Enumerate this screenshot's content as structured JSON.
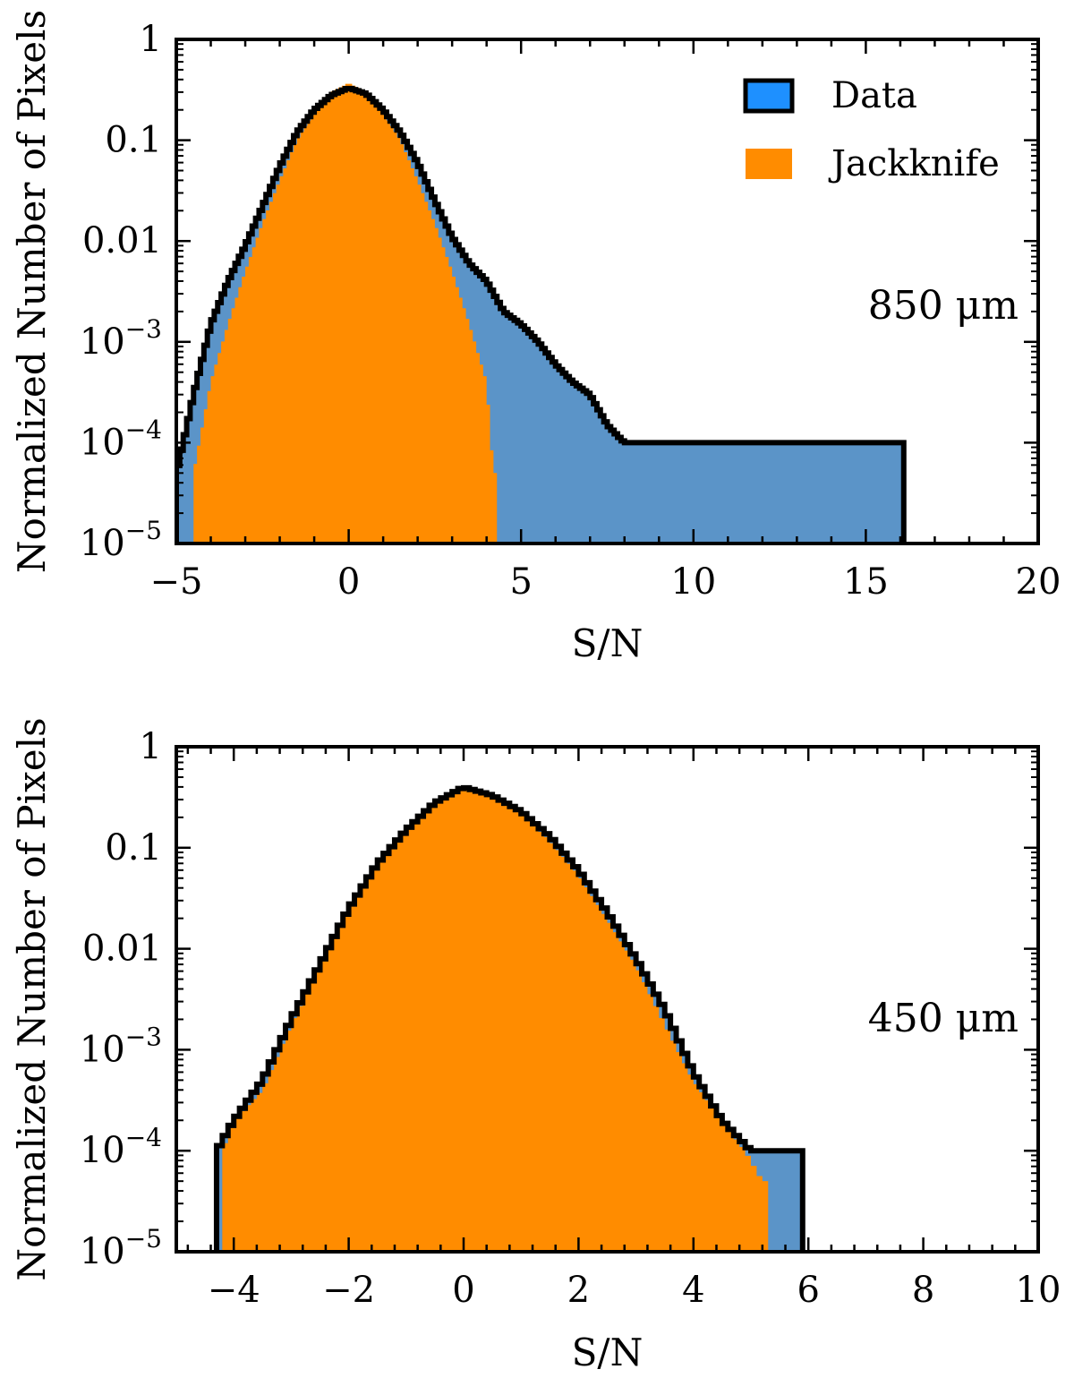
{
  "chart_data": [
    {
      "type": "histogram",
      "xlabel": "S/N",
      "ylabel": "Normalized Number of Pixels",
      "annotation": "850 μm",
      "xlim": [
        -5,
        20
      ],
      "ylim": [
        1e-05,
        1
      ],
      "yscale": "log",
      "x_ticks": [
        -5,
        0,
        5,
        10,
        15,
        20
      ],
      "x_tick_labels": [
        "−5",
        "0",
        "5",
        "10",
        "15",
        "20"
      ],
      "y_ticks": [
        1e-05,
        0.0001,
        0.001,
        0.01,
        0.1,
        1
      ],
      "y_tick_labels": [
        {
          "base": "10",
          "exp": "−5"
        },
        {
          "base": "10",
          "exp": "−4"
        },
        {
          "base": "10",
          "exp": "−3"
        },
        {
          "base": "",
          "text": "0.01"
        },
        {
          "base": "",
          "text": "0.1"
        },
        {
          "base": "",
          "text": "1"
        }
      ],
      "legend": {
        "placement": "top-right",
        "entries": [
          {
            "label": "Data",
            "color": "#1e90ff",
            "edge": "#000000"
          },
          {
            "label": "Jackknife",
            "color": "#ff8c00"
          }
        ]
      },
      "colors": {
        "data_fill": "#5b94c8",
        "jackknife_fill": "#ff8c00",
        "outline": "#000000"
      },
      "series": [
        {
          "name": "Data",
          "bin_width": 0.1,
          "points": [
            [
              -5.0,
              5e-05
            ],
            [
              -4.8,
              0.0001
            ],
            [
              -4.5,
              0.0003
            ],
            [
              -4.0,
              0.0015
            ],
            [
              -3.5,
              0.004
            ],
            [
              -3.0,
              0.009
            ],
            [
              -2.5,
              0.022
            ],
            [
              -2.0,
              0.055
            ],
            [
              -1.5,
              0.12
            ],
            [
              -1.0,
              0.2
            ],
            [
              -0.5,
              0.28
            ],
            [
              0.0,
              0.33
            ],
            [
              0.5,
              0.29
            ],
            [
              1.0,
              0.2
            ],
            [
              1.5,
              0.12
            ],
            [
              2.0,
              0.06
            ],
            [
              2.5,
              0.025
            ],
            [
              3.0,
              0.011
            ],
            [
              3.5,
              0.006
            ],
            [
              4.0,
              0.004
            ],
            [
              4.5,
              0.002
            ],
            [
              5.0,
              0.0015
            ],
            [
              5.5,
              0.001
            ],
            [
              6.0,
              0.0006
            ],
            [
              6.5,
              0.0004
            ],
            [
              7.0,
              0.0003
            ],
            [
              7.5,
              0.00015
            ],
            [
              8.0,
              0.0001
            ],
            [
              9.0,
              0.0001
            ],
            [
              10.0,
              0.0001
            ],
            [
              11.0,
              0.0001
            ],
            [
              12.0,
              0.0001
            ],
            [
              13.0,
              0.0001
            ],
            [
              14.0,
              0.0001
            ],
            [
              15.0,
              0.0001
            ],
            [
              16.0,
              0.0001
            ]
          ]
        },
        {
          "name": "Jackknife",
          "bin_width": 0.1,
          "points": [
            [
              -4.5,
              5e-05
            ],
            [
              -4.0,
              0.0004
            ],
            [
              -3.5,
              0.0015
            ],
            [
              -3.0,
              0.005
            ],
            [
              -2.5,
              0.015
            ],
            [
              -2.0,
              0.04
            ],
            [
              -1.5,
              0.1
            ],
            [
              -1.0,
              0.19
            ],
            [
              -0.5,
              0.3
            ],
            [
              0.0,
              0.37
            ],
            [
              0.5,
              0.3
            ],
            [
              1.0,
              0.19
            ],
            [
              1.5,
              0.1
            ],
            [
              2.0,
              0.04
            ],
            [
              2.5,
              0.015
            ],
            [
              3.0,
              0.005
            ],
            [
              3.5,
              0.0015
            ],
            [
              4.0,
              0.0004
            ],
            [
              4.2,
              5e-05
            ]
          ]
        }
      ]
    },
    {
      "type": "histogram",
      "xlabel": "S/N",
      "ylabel": "Normalized Number of Pixels",
      "annotation": "450 μm",
      "xlim": [
        -5,
        10
      ],
      "ylim": [
        1e-05,
        1
      ],
      "yscale": "log",
      "x_ticks": [
        -4,
        -2,
        0,
        2,
        4,
        6,
        8,
        10
      ],
      "x_tick_labels": [
        "−4",
        "−2",
        "0",
        "2",
        "4",
        "6",
        "8",
        "10"
      ],
      "y_ticks": [
        1e-05,
        0.0001,
        0.001,
        0.01,
        0.1,
        1
      ],
      "y_tick_labels": [
        {
          "base": "10",
          "exp": "−5"
        },
        {
          "base": "10",
          "exp": "−4"
        },
        {
          "base": "10",
          "exp": "−3"
        },
        {
          "base": "",
          "text": "0.01"
        },
        {
          "base": "",
          "text": "0.1"
        },
        {
          "base": "",
          "text": "1"
        }
      ],
      "colors": {
        "data_fill": "#5b94c8",
        "jackknife_fill": "#ff8c00",
        "outline": "#000000"
      },
      "series": [
        {
          "name": "Data",
          "bin_width": 0.1,
          "points": [
            [
              -4.3,
              0.0001
            ],
            [
              -4.0,
              0.0002
            ],
            [
              -3.5,
              0.0005
            ],
            [
              -3.0,
              0.002
            ],
            [
              -2.5,
              0.007
            ],
            [
              -2.0,
              0.025
            ],
            [
              -1.5,
              0.07
            ],
            [
              -1.0,
              0.15
            ],
            [
              -0.5,
              0.28
            ],
            [
              0.0,
              0.4
            ],
            [
              0.5,
              0.33
            ],
            [
              1.0,
              0.23
            ],
            [
              1.5,
              0.13
            ],
            [
              2.0,
              0.06
            ],
            [
              2.5,
              0.023
            ],
            [
              3.0,
              0.008
            ],
            [
              3.5,
              0.0025
            ],
            [
              4.0,
              0.0006
            ],
            [
              4.5,
              0.0002
            ],
            [
              5.0,
              0.0001
            ],
            [
              5.5,
              0.0001
            ],
            [
              5.8,
              0.0001
            ]
          ]
        },
        {
          "name": "Jackknife",
          "bin_width": 0.1,
          "points": [
            [
              -4.2,
              0.0001
            ],
            [
              -4.0,
              0.0002
            ],
            [
              -3.5,
              0.0004
            ],
            [
              -3.0,
              0.0018
            ],
            [
              -2.5,
              0.007
            ],
            [
              -2.0,
              0.024
            ],
            [
              -1.5,
              0.07
            ],
            [
              -1.0,
              0.15
            ],
            [
              -0.5,
              0.28
            ],
            [
              0.0,
              0.39
            ],
            [
              0.5,
              0.33
            ],
            [
              1.0,
              0.22
            ],
            [
              1.5,
              0.12
            ],
            [
              2.0,
              0.055
            ],
            [
              2.5,
              0.02
            ],
            [
              3.0,
              0.007
            ],
            [
              3.5,
              0.0018
            ],
            [
              4.0,
              0.0005
            ],
            [
              4.5,
              0.0002
            ],
            [
              4.9,
              0.0001
            ],
            [
              5.2,
              5e-05
            ]
          ]
        }
      ]
    }
  ]
}
